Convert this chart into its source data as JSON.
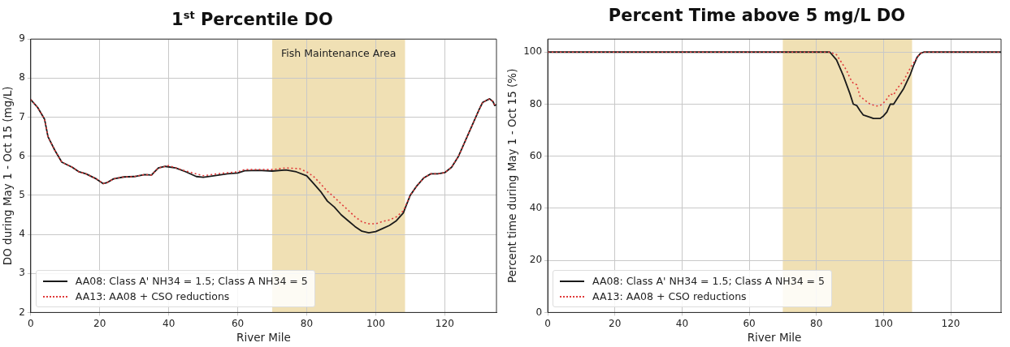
{
  "chart_data": [
    {
      "type": "line",
      "title": "1$^{st}$ Percentile DO",
      "xlabel": "River Mile",
      "ylabel": "DO during May 1 - Oct 15 (mg/L)",
      "xlim": [
        0,
        135
      ],
      "xticks": [
        0,
        20,
        40,
        60,
        80,
        100,
        120
      ],
      "ylim": [
        2,
        9
      ],
      "yticks": [
        2,
        3,
        4,
        5,
        6,
        7,
        8,
        9
      ],
      "grid": true,
      "legend": "bottom left",
      "marker": "none",
      "bands": [
        {
          "axis": "x",
          "from": 70,
          "to": 108.5,
          "label": "Fish Maintenance Area",
          "color": "#f0e0b4"
        }
      ],
      "series": [
        {
          "name": "AA08: Class A' NH34 = 1.5; Class A NH34 = 5",
          "color": "#1a1a1a",
          "line_style": "solid",
          "x": [
            0,
            2,
            4,
            5,
            7,
            9,
            12,
            14,
            16,
            19,
            21,
            22,
            24,
            27,
            30,
            33,
            35,
            37,
            39,
            42,
            45,
            48,
            50,
            53,
            57,
            60,
            62,
            66,
            70,
            74,
            77,
            80,
            82,
            84,
            86,
            88,
            90,
            92,
            94,
            96,
            98,
            100,
            102,
            104,
            106,
            108,
            110,
            112,
            114,
            116,
            118,
            120,
            122,
            124,
            126,
            128,
            130,
            131,
            133,
            134,
            134.5,
            135
          ],
          "values": [
            7.45,
            7.25,
            6.95,
            6.5,
            6.15,
            5.85,
            5.72,
            5.6,
            5.55,
            5.42,
            5.3,
            5.32,
            5.42,
            5.47,
            5.48,
            5.53,
            5.52,
            5.7,
            5.74,
            5.7,
            5.6,
            5.48,
            5.46,
            5.5,
            5.55,
            5.57,
            5.63,
            5.64,
            5.62,
            5.65,
            5.6,
            5.5,
            5.3,
            5.1,
            4.85,
            4.7,
            4.5,
            4.35,
            4.2,
            4.08,
            4.04,
            4.07,
            4.15,
            4.23,
            4.35,
            4.55,
            5.0,
            5.25,
            5.45,
            5.55,
            5.55,
            5.58,
            5.72,
            6.0,
            6.4,
            6.8,
            7.2,
            7.38,
            7.47,
            7.4,
            7.3,
            7.32
          ]
        },
        {
          "name": "AA13: AA08 + CSO reductions",
          "color": "#e03a3a",
          "line_style": "dotted",
          "x": [
            0,
            2,
            4,
            5,
            7,
            9,
            12,
            14,
            16,
            19,
            21,
            22,
            24,
            27,
            30,
            33,
            35,
            37,
            40,
            45,
            50,
            55,
            60,
            62,
            70,
            74,
            78,
            80,
            82,
            84,
            86,
            88,
            90,
            92,
            94,
            96,
            98,
            100,
            102,
            104,
            106,
            108,
            110,
            112,
            114,
            116,
            118,
            120,
            122,
            124,
            126,
            128,
            130,
            131,
            133,
            134,
            134.5,
            135
          ],
          "values": [
            7.45,
            7.25,
            6.95,
            6.5,
            6.15,
            5.85,
            5.72,
            5.6,
            5.55,
            5.42,
            5.3,
            5.32,
            5.42,
            5.47,
            5.48,
            5.53,
            5.52,
            5.7,
            5.76,
            5.62,
            5.5,
            5.56,
            5.6,
            5.66,
            5.66,
            5.7,
            5.68,
            5.6,
            5.48,
            5.3,
            5.1,
            4.95,
            4.78,
            4.62,
            4.45,
            4.32,
            4.27,
            4.27,
            4.33,
            4.37,
            4.45,
            4.6,
            5.0,
            5.25,
            5.45,
            5.55,
            5.55,
            5.58,
            5.72,
            6.0,
            6.4,
            6.8,
            7.2,
            7.38,
            7.47,
            7.4,
            7.3,
            7.32
          ]
        }
      ]
    },
    {
      "type": "line",
      "title": "Percent Time above 5 mg/L DO",
      "xlabel": "River Mile",
      "ylabel": "Percent time during May 1 - Oct 15 (%)",
      "xlim": [
        0,
        135
      ],
      "xticks": [
        0,
        20,
        40,
        60,
        80,
        100,
        120
      ],
      "ylim": [
        0,
        105
      ],
      "yticks": [
        0,
        20,
        40,
        60,
        80,
        100
      ],
      "grid": true,
      "legend": "bottom left",
      "marker": "none",
      "bands": [
        {
          "axis": "x",
          "from": 70,
          "to": 108.5,
          "color": "#f0e0b4"
        }
      ],
      "series": [
        {
          "name": "AA08: Class A' NH34 = 1.5; Class A NH34 = 5",
          "color": "#1a1a1a",
          "line_style": "solid",
          "x": [
            0,
            84,
            86,
            88,
            90,
            91,
            92,
            93,
            94,
            96,
            97,
            99,
            100,
            101,
            102,
            103,
            104,
            106,
            108,
            109,
            110,
            111,
            112,
            135
          ],
          "values": [
            100,
            100,
            97,
            91,
            84,
            80,
            79.5,
            77.5,
            75.8,
            75,
            74.5,
            74.5,
            75.5,
            77,
            80,
            80,
            82,
            86,
            91.5,
            95,
            98,
            99.5,
            100,
            100
          ]
        },
        {
          "name": "AA13: AA08 + CSO reductions",
          "color": "#e03a3a",
          "line_style": "dotted",
          "x": [
            0,
            84,
            86,
            87,
            89,
            90,
            91,
            92,
            93,
            94,
            96,
            98,
            99,
            100,
            101,
            102,
            103,
            104,
            106,
            108,
            110,
            111,
            112,
            135
          ],
          "values": [
            100,
            100,
            99,
            97,
            93,
            90,
            88,
            87.5,
            83,
            82,
            80,
            79.3,
            79.5,
            80.5,
            82,
            84,
            83.5,
            86,
            89,
            94,
            98,
            99.5,
            100,
            100
          ]
        }
      ]
    }
  ]
}
